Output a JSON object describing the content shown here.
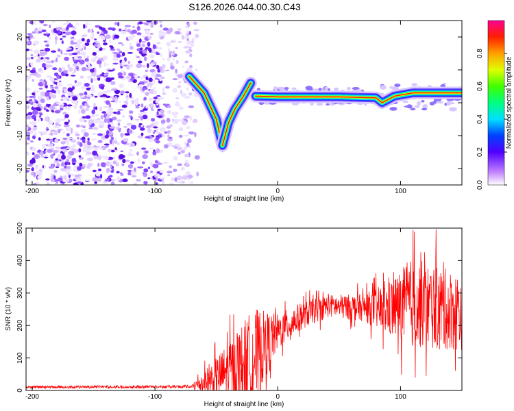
{
  "chart_data": [
    {
      "type": "heatmap",
      "title": "S126.2026.044.00.30.C43",
      "xlabel": "Height of straight line (km)",
      "ylabel": "Frequency (Hz)",
      "xlim": [
        -205,
        150
      ],
      "ylim": [
        -25,
        25
      ],
      "xticks": [
        "-200",
        "-100",
        "0",
        "100"
      ],
      "yticks": [
        "-20",
        "-10",
        "0",
        "10",
        "20"
      ],
      "colorbar": {
        "label": "Normalized spectral amplitude",
        "range": [
          0,
          1
        ],
        "ticks": [
          "0.0",
          "0.2",
          "0.4",
          "0.6",
          "0.8"
        ]
      },
      "features": {
        "noise_region_x": [
          -205,
          -70
        ],
        "drop_segment": [
          [
            -72,
            8
          ],
          [
            -60,
            3
          ],
          [
            -50,
            -5
          ],
          [
            -45,
            -13
          ],
          [
            -40,
            -6
          ],
          [
            -35,
            -2
          ],
          [
            -28,
            2
          ],
          [
            -22,
            6
          ]
        ],
        "main_tone": [
          [
            -18,
            2
          ],
          [
            0,
            1.8
          ],
          [
            50,
            1.8
          ],
          [
            80,
            1.5
          ],
          [
            85,
            0
          ],
          [
            95,
            2
          ],
          [
            110,
            3
          ],
          [
            150,
            3
          ]
        ]
      }
    },
    {
      "type": "line",
      "xlabel": "Height of straight line (km)",
      "ylabel": "SNR (10 * v/v)",
      "xlim": [
        -205,
        150
      ],
      "ylim": [
        0,
        500
      ],
      "xticks": [
        "-200",
        "-100",
        "0",
        "100"
      ],
      "yticks": [
        "0",
        "100",
        "200",
        "300",
        "400",
        "500"
      ],
      "series": [
        {
          "name": "SNR",
          "color": "#ff0000",
          "envelope": [
            {
              "x": -205,
              "base": 10,
              "spread": 8
            },
            {
              "x": -70,
              "base": 12,
              "spread": 10
            },
            {
              "x": -50,
              "base": 40,
              "spread": 90
            },
            {
              "x": -35,
              "base": 70,
              "spread": 150
            },
            {
              "x": -20,
              "base": 100,
              "spread": 220
            },
            {
              "x": 0,
              "base": 180,
              "spread": 80
            },
            {
              "x": 20,
              "base": 230,
              "spread": 60
            },
            {
              "x": 40,
              "base": 260,
              "spread": 50
            },
            {
              "x": 70,
              "base": 255,
              "spread": 60
            },
            {
              "x": 90,
              "base": 250,
              "spread": 120
            },
            {
              "x": 110,
              "base": 270,
              "spread": 200
            },
            {
              "x": 150,
              "base": 240,
              "spread": 170
            }
          ]
        }
      ]
    }
  ]
}
